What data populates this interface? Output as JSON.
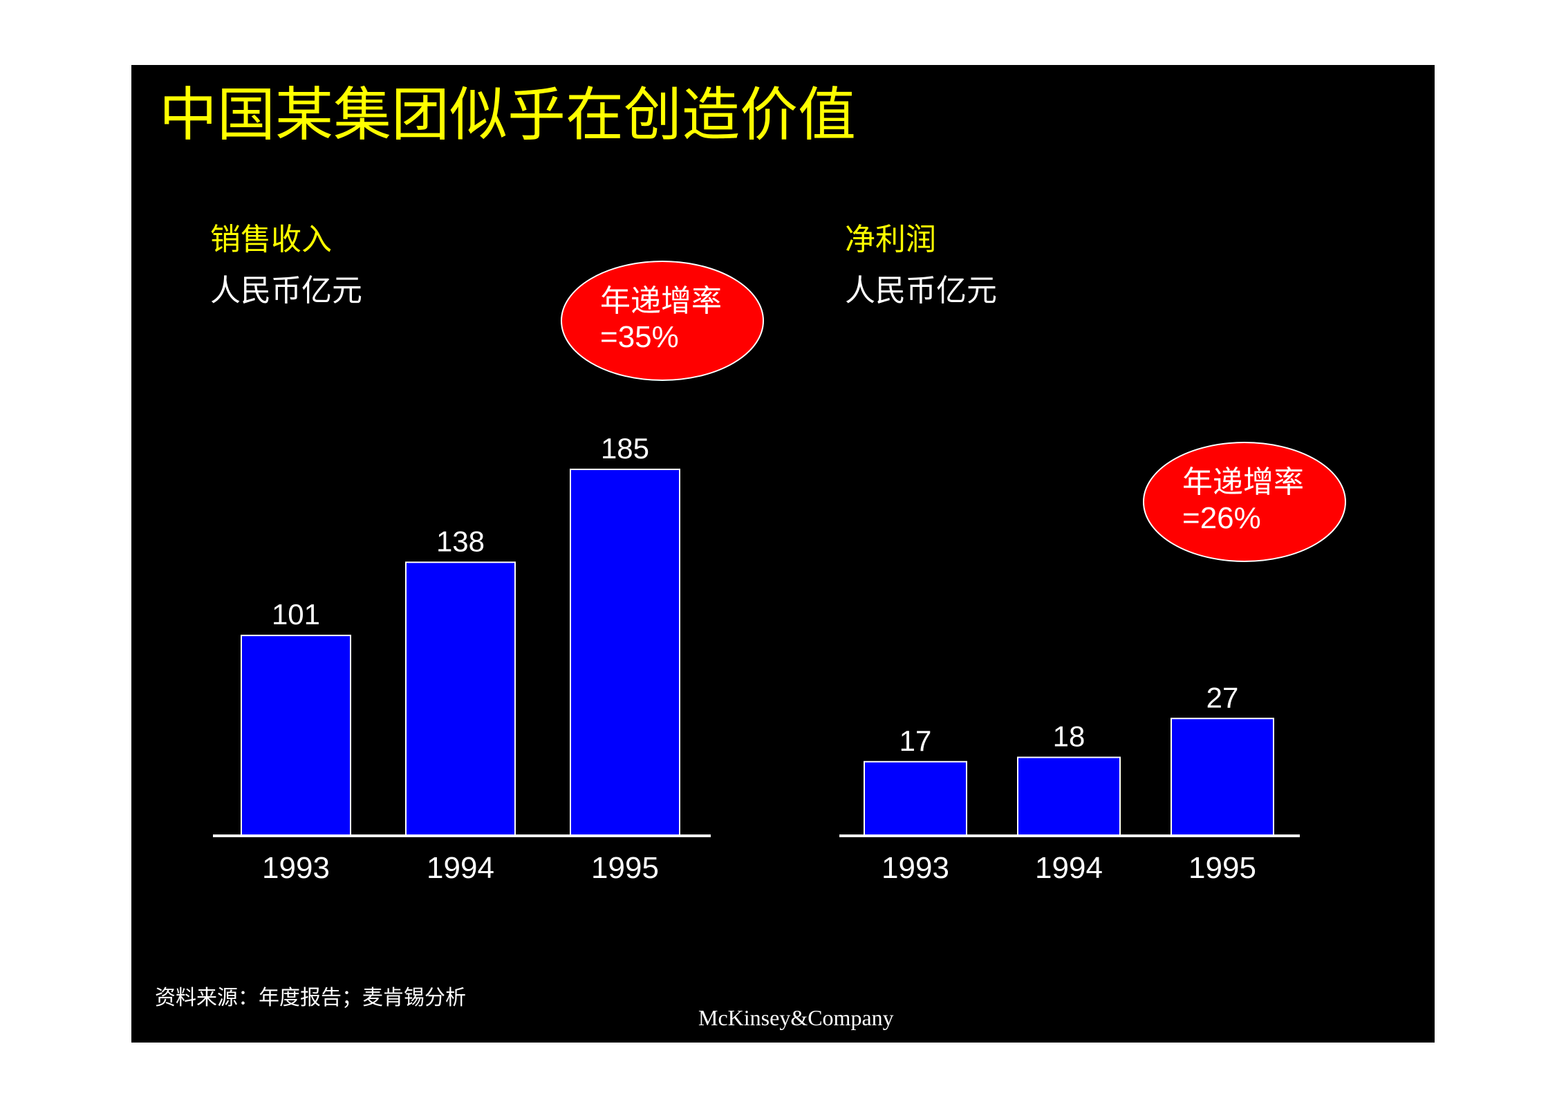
{
  "slide": {
    "title": "中国某集团似乎在创造价值",
    "source": "资料来源：年度报告；麦肯锡分析",
    "brand": "McKinsey&Company",
    "background": "#000000",
    "title_color": "#ffff00",
    "bar_color": "#0000ff",
    "callout_color": "#ff0000"
  },
  "chart_data": [
    {
      "type": "bar",
      "title": "销售收入",
      "unit": "人民币亿元",
      "categories": [
        "1993",
        "1994",
        "1995"
      ],
      "values": [
        101,
        138,
        185
      ],
      "data_labels": [
        "101",
        "138",
        "185"
      ],
      "callout": {
        "line1": "年递增率",
        "line2": "=35%"
      },
      "grid": false,
      "legend": "none"
    },
    {
      "type": "bar",
      "title": "净利润",
      "unit": "人民币亿元",
      "categories": [
        "1993",
        "1994",
        "1995"
      ],
      "values": [
        17,
        18,
        27
      ],
      "data_labels": [
        "17",
        "18",
        "27"
      ],
      "callout": {
        "line1": "年递增率",
        "line2": "=26%"
      },
      "grid": false,
      "legend": "none"
    }
  ]
}
